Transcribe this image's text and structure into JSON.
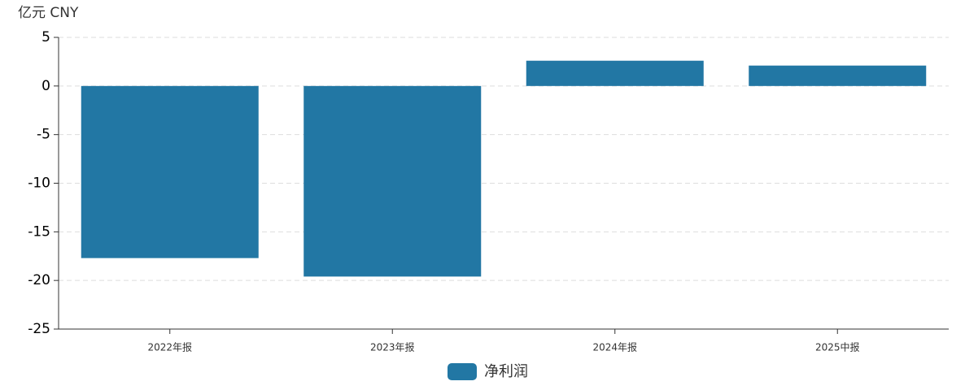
{
  "chart_data": {
    "type": "bar",
    "unit_label": "亿元  CNY",
    "categories": [
      "2022年报",
      "2023年报",
      "2024年报",
      "2025中报"
    ],
    "series": [
      {
        "name": "净利润",
        "color": "#2277a4",
        "values": [
          -17.7,
          -19.6,
          2.6,
          2.1
        ]
      }
    ],
    "ylim": [
      -25,
      5
    ],
    "yticks": [
      -25,
      -20,
      -15,
      -10,
      -5,
      0,
      5
    ],
    "grid": true
  }
}
